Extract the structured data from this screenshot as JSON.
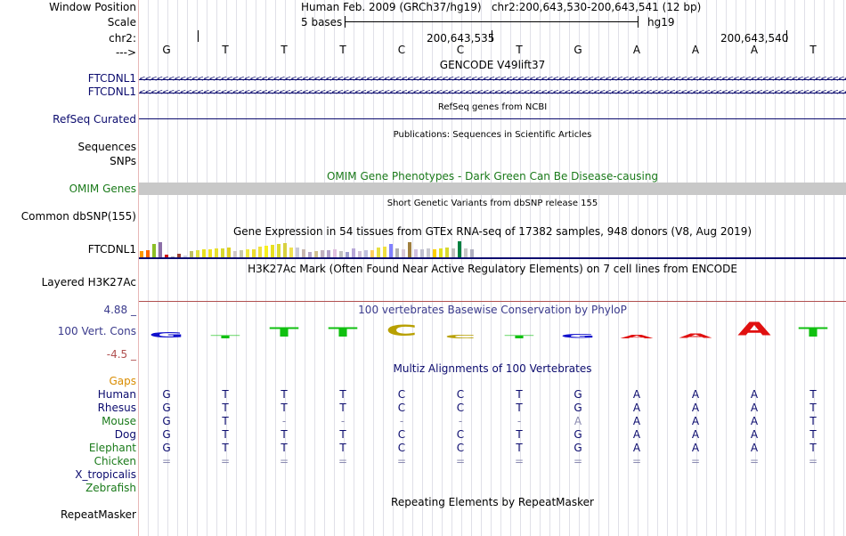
{
  "header": {
    "window_position_label": "Window Position",
    "window_position_value": "Human Feb. 2009 (GRCh37/hg19)   chr2:200,643,530-200,643,541 (12 bp)",
    "scale_label": "Scale",
    "scale_value": "5 bases",
    "scale_assembly": "hg19",
    "chrom_label": "chr2:",
    "coord_1": "200,643,535",
    "coord_2": "200,643,540",
    "strand_label": "--->",
    "bases": [
      "G",
      "T",
      "T",
      "T",
      "C",
      "C",
      "T",
      "G",
      "A",
      "A",
      "A",
      "T"
    ]
  },
  "tracks": {
    "gencode": {
      "title": "GENCODE V49lift37",
      "items": [
        "FTCDNL1",
        "FTCDNL1"
      ],
      "strand_glyph": "<"
    },
    "refseq": {
      "title": "RefSeq genes from NCBI",
      "label": "RefSeq Curated"
    },
    "publications": {
      "title": "Publications: Sequences in Scientific Articles",
      "label_seq": "Sequences",
      "label_snps": "SNPs"
    },
    "omim": {
      "title": "OMIM Gene Phenotypes - Dark Green Can Be Disease-causing",
      "label": "OMIM Genes"
    },
    "dbsnp": {
      "title": "Short Genetic Variants from dbSNP release 155",
      "label": "Common dbSNP(155)"
    },
    "gtex": {
      "title": "Gene Expression in 54 tissues from GTEx RNA-seq of 17382 samples, 948 donors (V8, Aug 2019)",
      "label": "FTCDNL1"
    },
    "h3k27ac": {
      "title": "H3K27Ac Mark (Often Found Near Active Regulatory Elements) on 7 cell lines from ENCODE",
      "label": "Layered H3K27Ac"
    },
    "phylop": {
      "title": "100 vertebrates Basewise Conservation by PhyloP",
      "label": "100 Vert. Cons",
      "max": "4.88 _",
      "min": "-4.5 _"
    },
    "multiz": {
      "title": "Multiz Alignments of 100 Vertebrates",
      "gaps_label": "Gaps",
      "species": [
        {
          "name": "Human",
          "color": "#0b0b6e",
          "row": [
            "G",
            "T",
            "T",
            "T",
            "C",
            "C",
            "T",
            "G",
            "A",
            "A",
            "A",
            "T"
          ]
        },
        {
          "name": "Rhesus",
          "color": "#0b0b6e",
          "row": [
            "G",
            "T",
            "T",
            "T",
            "C",
            "C",
            "T",
            "G",
            "A",
            "A",
            "A",
            "T"
          ]
        },
        {
          "name": "Mouse",
          "color": "#1a7a1a",
          "row": [
            "G",
            "T",
            "-",
            "-",
            "-",
            "-",
            "-",
            "A",
            "A",
            "A",
            "A",
            "T"
          ]
        },
        {
          "name": "Dog",
          "color": "#0b0b6e",
          "row": [
            "G",
            "T",
            "T",
            "T",
            "C",
            "C",
            "T",
            "G",
            "A",
            "A",
            "A",
            "T"
          ]
        },
        {
          "name": "Elephant",
          "color": "#1a7a1a",
          "row": [
            "G",
            "T",
            "T",
            "T",
            "C",
            "C",
            "T",
            "G",
            "A",
            "A",
            "A",
            "T"
          ]
        },
        {
          "name": "Chicken",
          "color": "#1a7a1a",
          "row": [
            "=",
            "=",
            "=",
            "=",
            "=",
            "=",
            "=",
            "=",
            "=",
            "=",
            "=",
            "="
          ]
        },
        {
          "name": "X_tropicalis",
          "color": "#0b0b6e",
          "row": []
        },
        {
          "name": "Zebrafish",
          "color": "#1a7a1a",
          "row": []
        }
      ]
    },
    "repeatmasker": {
      "title": "Repeating Elements by RepeatMasker",
      "label": "RepeatMasker"
    }
  },
  "colors": {
    "track_label_blue": "#0b0b6e",
    "omim_green": "#1a7a1a",
    "phylop_label": "#3a3a8c",
    "omim_bar": "#c8c8c8",
    "gaps_orange": "#d98c00",
    "base_A": "#e01010",
    "base_C": "#b8a000",
    "base_G": "#1010cc",
    "base_T": "#10c010"
  },
  "phylop_letters": [
    {
      "base": "G",
      "height": 0.35
    },
    {
      "base": "T",
      "height": 0.15
    },
    {
      "base": "T",
      "height": 0.6
    },
    {
      "base": "T",
      "height": 0.6
    },
    {
      "base": "C",
      "height": 0.7
    },
    {
      "base": "C",
      "height": 0.2
    },
    {
      "base": "T",
      "height": 0.15
    },
    {
      "base": "G",
      "height": 0.25
    },
    {
      "base": "A",
      "height": 0.2
    },
    {
      "base": "A",
      "height": 0.3
    },
    {
      "base": "A",
      "height": 0.85
    },
    {
      "base": "T",
      "height": 0.6
    }
  ],
  "gtex_levels": [
    0.35,
    0.4,
    0.75,
    0.85,
    0.15,
    0.05,
    0.2,
    0.1,
    0.35,
    0.4,
    0.45,
    0.45,
    0.5,
    0.5,
    0.55,
    0.35,
    0.4,
    0.45,
    0.45,
    0.6,
    0.65,
    0.7,
    0.75,
    0.8,
    0.55,
    0.55,
    0.45,
    0.3,
    0.35,
    0.4,
    0.4,
    0.45,
    0.35,
    0.3,
    0.5,
    0.35,
    0.4,
    0.4,
    0.55,
    0.6,
    0.75,
    0.5,
    0.45,
    0.85,
    0.45,
    0.45,
    0.5,
    0.45,
    0.5,
    0.55,
    0.5,
    0.9,
    0.5,
    0.45
  ]
}
